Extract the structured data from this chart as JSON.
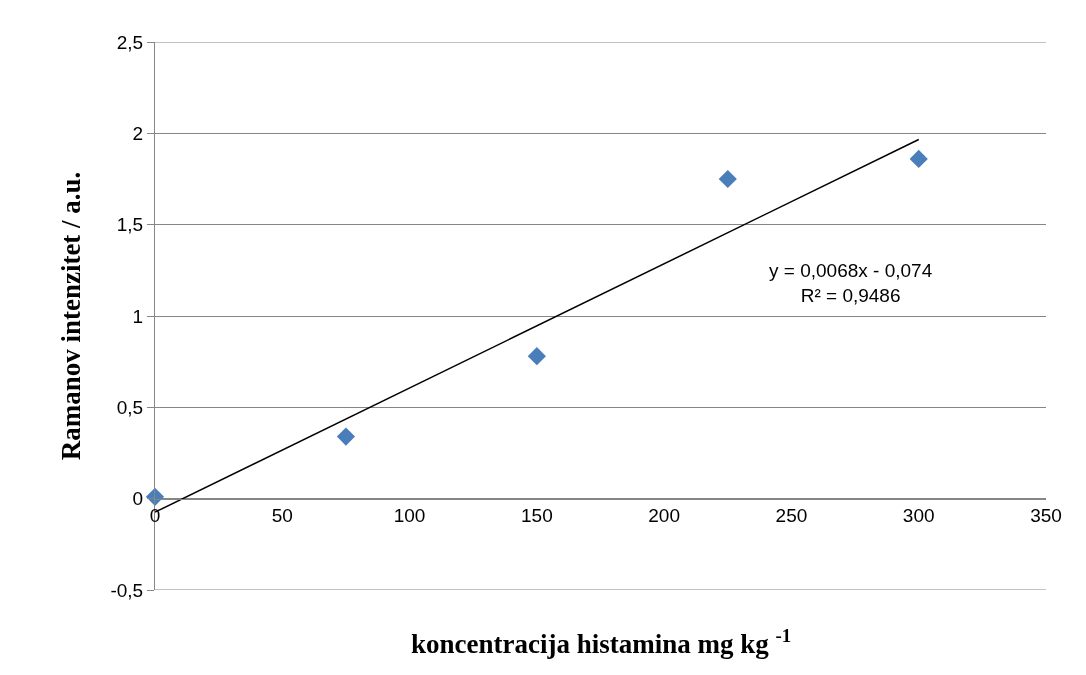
{
  "chart_data": {
    "type": "scatter",
    "xlabel": "koncentracija histamina mg kg $^{-1}$",
    "ylabel": "Ramanov intenzitet / a.u.",
    "x": [
      0,
      75,
      150,
      225,
      300
    ],
    "series": [
      {
        "color": "#4a7ebb",
        "values": [
          0.01,
          0.34,
          0.78,
          1.75,
          1.86
        ],
        "marker": "diamond"
      },
      {
        "type": "line",
        "color": "#000000",
        "x": [
          0,
          300
        ],
        "values": [
          -0.074,
          1.966
        ],
        "marker": "none",
        "line_style": "solid"
      }
    ],
    "xlim": [
      0,
      350
    ],
    "xticks": [
      0,
      50,
      100,
      150,
      200,
      250,
      300,
      350
    ],
    "ylim": [
      -0.5,
      2.5
    ],
    "yticks": [
      {
        "value": -0.5,
        "label": "-0,5"
      },
      0,
      {
        "value": 0.5,
        "label": "0,5"
      },
      1,
      {
        "value": 1.5,
        "label": "1,5"
      },
      2,
      {
        "value": 2.5,
        "label": "2,5"
      }
    ],
    "grid": "y",
    "annotations": [
      "y = 0,0068x - 0,074\nR² = 0,9486"
    ]
  }
}
